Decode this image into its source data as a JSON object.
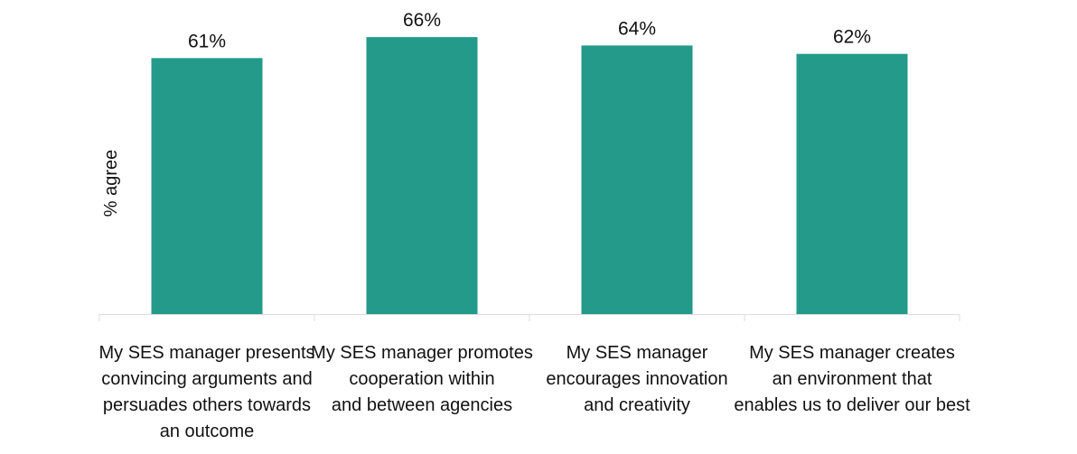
{
  "chart_data": {
    "type": "bar",
    "title": "",
    "xlabel": "",
    "ylabel": "% agree",
    "ylim": [
      0,
      70
    ],
    "grid": false,
    "categories": [
      [
        "My SES manager presents",
        "convincing arguments and",
        "persuades others towards",
        "an outcome"
      ],
      [
        "My SES manager promotes",
        "cooperation within",
        "and between agencies"
      ],
      [
        "My SES manager",
        "encourages innovation",
        "and creativity"
      ],
      [
        "My SES manager creates",
        "an environment that",
        "enables us to deliver our best"
      ]
    ],
    "values": [
      61,
      66,
      64,
      62
    ],
    "value_labels": [
      "61%",
      "66%",
      "64%",
      "62%"
    ],
    "bar_color": "#239a8a",
    "axis_color": "#dddddd"
  }
}
